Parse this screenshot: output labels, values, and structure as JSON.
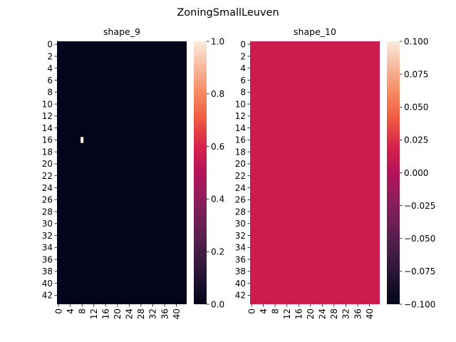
{
  "figure": {
    "suptitle": "ZoningSmallLeuven"
  },
  "chart_data": [
    {
      "type": "heatmap",
      "title": "shape_9",
      "rows": 44,
      "cols": 44,
      "row_ticks": [
        0,
        2,
        4,
        6,
        8,
        10,
        12,
        14,
        16,
        18,
        20,
        22,
        24,
        26,
        28,
        30,
        32,
        34,
        36,
        38,
        40,
        42
      ],
      "col_ticks": [
        0,
        4,
        8,
        12,
        16,
        20,
        24,
        28,
        32,
        36,
        40
      ],
      "background_value": 0.0,
      "nonzero_cells": [
        {
          "row": 16,
          "col": 8,
          "value": 1.0
        }
      ],
      "colorbar": {
        "range": [
          0.0,
          1.0
        ],
        "ticks": [
          0.0,
          0.2,
          0.4,
          0.6,
          0.8,
          1.0
        ],
        "tick_labels": [
          "0.0",
          "0.2",
          "0.4",
          "0.6",
          "0.8",
          "1.0"
        ]
      },
      "colormap": "rocket",
      "colors": {
        "low": "#03051a",
        "high": "#faebdd"
      }
    },
    {
      "type": "heatmap",
      "title": "shape_10",
      "rows": 44,
      "cols": 44,
      "row_ticks": [
        0,
        2,
        4,
        6,
        8,
        10,
        12,
        14,
        16,
        18,
        20,
        22,
        24,
        26,
        28,
        30,
        32,
        34,
        36,
        38,
        40,
        42
      ],
      "col_ticks": [
        0,
        4,
        8,
        12,
        16,
        20,
        24,
        28,
        32,
        36,
        40
      ],
      "background_value": 0.0,
      "nonzero_cells": [],
      "colorbar": {
        "range": [
          -0.1,
          0.1
        ],
        "ticks": [
          -0.1,
          -0.075,
          -0.05,
          -0.025,
          0.0,
          0.025,
          0.05,
          0.075,
          0.1
        ],
        "tick_labels": [
          "−0.100",
          "−0.075",
          "−0.050",
          "−0.025",
          "0.000",
          "0.025",
          "0.050",
          "0.075",
          "0.100"
        ]
      },
      "colormap": "rocket",
      "colors": {
        "low": "#03051a",
        "mid": "#cb1b4f",
        "high": "#faebdd"
      }
    }
  ]
}
